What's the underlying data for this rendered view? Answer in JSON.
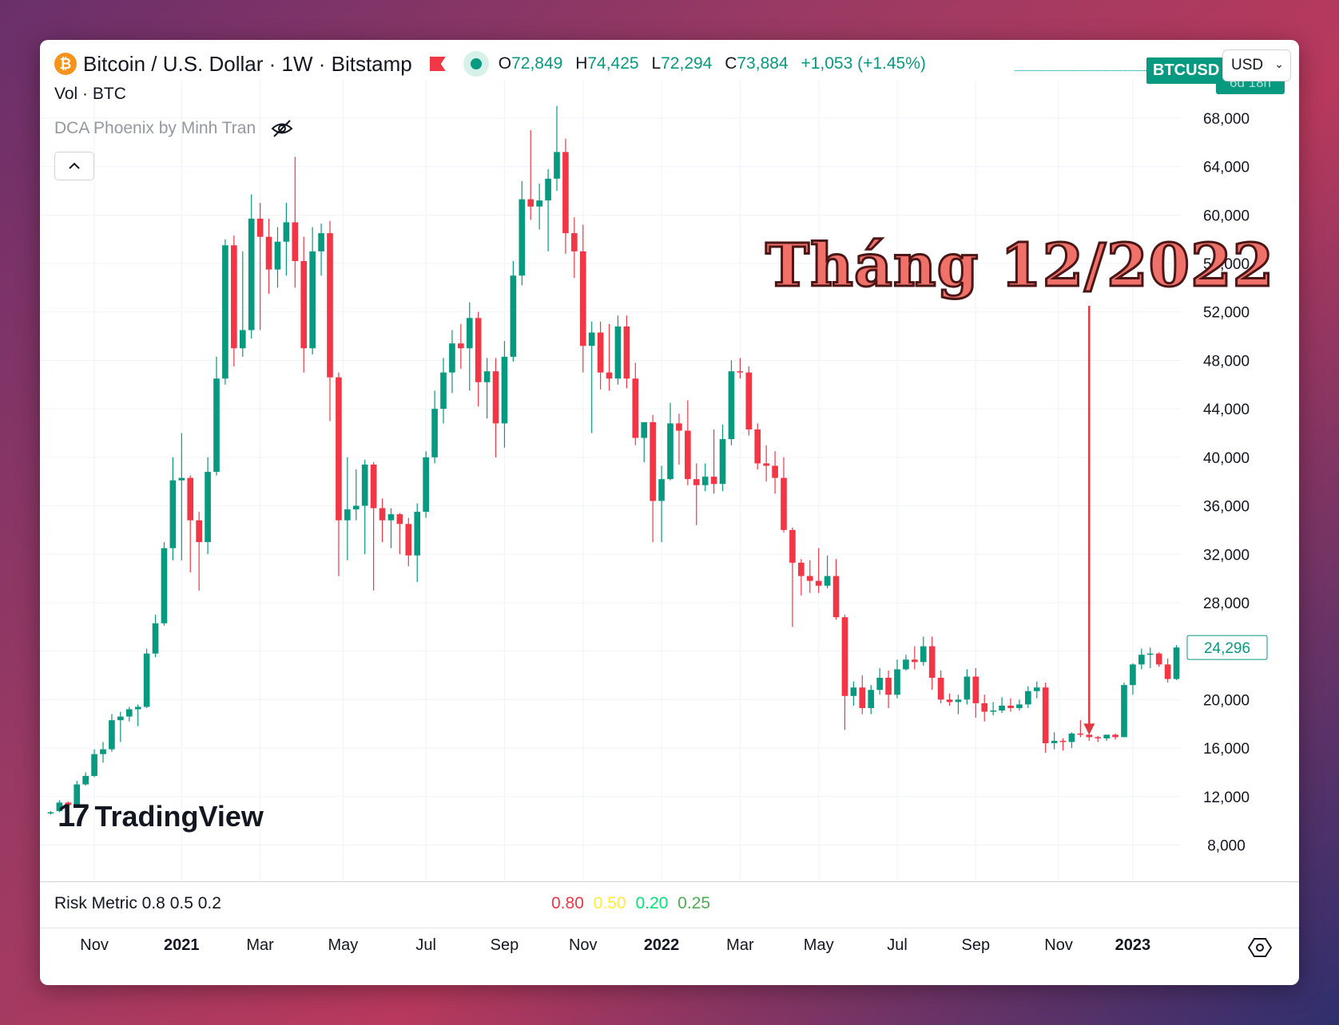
{
  "header": {
    "symbol_title": "Bitcoin / U.S. Dollar · 1W · Bitstamp",
    "logo_glyph": "₿",
    "ohlc": {
      "o_label": "O",
      "o": "72,849",
      "h_label": "H",
      "h": "74,425",
      "l_label": "L",
      "l": "72,294",
      "c_label": "C",
      "c": "73,884",
      "change": "+1,053 (+1.45%)"
    },
    "ticker_tag": "BTCUSD",
    "currency": "USD",
    "countdown": "6d 18h"
  },
  "legend": {
    "volume": "Vol · BTC",
    "indicator": "DCA Phoenix by Minh Tran"
  },
  "annotation": {
    "text": "Tháng 12/2022",
    "color": "#f0706a"
  },
  "branding": {
    "name": "TradingView"
  },
  "risk_metric": {
    "label": "Risk Metric 0.8 0.5 0.2",
    "values": [
      {
        "text": "0.80",
        "color": "#f23645"
      },
      {
        "text": "0.50",
        "color": "#ffeb3b"
      },
      {
        "text": "0.20",
        "color": "#00e676"
      },
      {
        "text": "0.25",
        "color": "#4caf50"
      }
    ]
  },
  "colors": {
    "up": "#089981",
    "down": "#f23645",
    "grid": "#f0f3fa",
    "axis_text": "#131722",
    "arrow": "#e0383e"
  },
  "chart_data": {
    "type": "candlestick",
    "interval": "1W",
    "y_ticks": [
      8000,
      12000,
      16000,
      20000,
      24000,
      28000,
      32000,
      36000,
      40000,
      44000,
      48000,
      52000,
      56000,
      60000,
      64000,
      68000
    ],
    "y_tick_labels": [
      "8,000",
      "12,000",
      "16,000",
      "20,000",
      "24,000",
      "28,000",
      "32,000",
      "36,000",
      "40,000",
      "44,000",
      "48,000",
      "52,000",
      "56,000",
      "60,000",
      "64,000",
      "68,000"
    ],
    "ylim": [
      5000,
      70500
    ],
    "last_price_label": "24,296",
    "last_price": 24296,
    "x_labels": [
      {
        "text": "Nov",
        "bold": false,
        "week": 5
      },
      {
        "text": "2021",
        "bold": true,
        "week": 15
      },
      {
        "text": "Mar",
        "bold": false,
        "week": 24
      },
      {
        "text": "May",
        "bold": false,
        "week": 33.5
      },
      {
        "text": "Jul",
        "bold": false,
        "week": 43
      },
      {
        "text": "Sep",
        "bold": false,
        "week": 52
      },
      {
        "text": "Nov",
        "bold": false,
        "week": 61
      },
      {
        "text": "2022",
        "bold": true,
        "week": 70
      },
      {
        "text": "Mar",
        "bold": false,
        "week": 79
      },
      {
        "text": "May",
        "bold": false,
        "week": 88
      },
      {
        "text": "Jul",
        "bold": false,
        "week": 97
      },
      {
        "text": "Sep",
        "bold": false,
        "week": 106
      },
      {
        "text": "Nov",
        "bold": false,
        "week": 115.5
      },
      {
        "text": "2023",
        "bold": true,
        "week": 124
      }
    ],
    "annotation_arrow_week": 119,
    "annotation_arrow_from": 52500,
    "annotation_arrow_to": 17100,
    "candles": [
      [
        10600,
        10700,
        10500,
        10800
      ],
      [
        10800,
        11500,
        10700,
        11700
      ],
      [
        11500,
        11300,
        11200,
        11600
      ],
      [
        11300,
        13000,
        11200,
        13300
      ],
      [
        13000,
        13700,
        12900,
        14000
      ],
      [
        13700,
        15500,
        13600,
        15900
      ],
      [
        15500,
        15900,
        14800,
        16500
      ],
      [
        15900,
        18300,
        15700,
        18800
      ],
      [
        18300,
        18600,
        16500,
        19000
      ],
      [
        18600,
        19200,
        18200,
        19400
      ],
      [
        19200,
        19400,
        17800,
        19600
      ],
      [
        19400,
        23800,
        19300,
        24200
      ],
      [
        23800,
        26300,
        23500,
        27000
      ],
      [
        26300,
        32500,
        26100,
        33000
      ],
      [
        32500,
        38100,
        31500,
        40000
      ],
      [
        38100,
        38300,
        31500,
        42000
      ],
      [
        38300,
        34800,
        30500,
        38500
      ],
      [
        34800,
        33000,
        29000,
        35500
      ],
      [
        33000,
        38800,
        32000,
        40000
      ],
      [
        38800,
        46500,
        38500,
        48300
      ],
      [
        46500,
        57500,
        46000,
        58000
      ],
      [
        57500,
        49000,
        47500,
        58300
      ],
      [
        49000,
        50500,
        48300,
        57000
      ],
      [
        50500,
        59700,
        49800,
        61700
      ],
      [
        59700,
        58200,
        50500,
        61000
      ],
      [
        58200,
        55500,
        53500,
        59700
      ],
      [
        55500,
        57800,
        54000,
        59000
      ],
      [
        57800,
        59400,
        55000,
        61000
      ],
      [
        59400,
        56200,
        54000,
        64800
      ],
      [
        56200,
        49000,
        47000,
        58200
      ],
      [
        49000,
        57000,
        48500,
        59000
      ],
      [
        57000,
        58500,
        55000,
        59300
      ],
      [
        58500,
        46600,
        43000,
        59500
      ],
      [
        46600,
        34800,
        30200,
        47000
      ],
      [
        34800,
        35700,
        31500,
        40000
      ],
      [
        35700,
        36000,
        34800,
        39000
      ],
      [
        36000,
        39400,
        32000,
        39800
      ],
      [
        39400,
        35800,
        29000,
        39600
      ],
      [
        35800,
        34800,
        33000,
        36600
      ],
      [
        34800,
        35300,
        32500,
        35800
      ],
      [
        35300,
        34500,
        32000,
        35400
      ],
      [
        34500,
        31900,
        31000,
        35000
      ],
      [
        31900,
        35500,
        29700,
        36200
      ],
      [
        35500,
        40000,
        35000,
        40500
      ],
      [
        40000,
        44000,
        39500,
        45500
      ],
      [
        44000,
        47000,
        42800,
        48200
      ],
      [
        47000,
        49400,
        45300,
        50500
      ],
      [
        49400,
        49000,
        47300,
        51000
      ],
      [
        49000,
        51500,
        45500,
        52800
      ],
      [
        51500,
        46200,
        44200,
        52000
      ],
      [
        46200,
        47100,
        43200,
        48200
      ],
      [
        47100,
        42800,
        40000,
        48200
      ],
      [
        42800,
        48300,
        40800,
        49600
      ],
      [
        48300,
        55000,
        47900,
        56200
      ],
      [
        55000,
        61300,
        54200,
        62800
      ],
      [
        61300,
        60700,
        59600,
        67000
      ],
      [
        60700,
        61200,
        58800,
        62600
      ],
      [
        61200,
        63000,
        57000,
        63800
      ],
      [
        63000,
        65200,
        62000,
        69000
      ],
      [
        65200,
        58500,
        56800,
        66300
      ],
      [
        58500,
        57000,
        54800,
        59800
      ],
      [
        57000,
        49200,
        47000,
        59200
      ],
      [
        49200,
        50300,
        42000,
        51200
      ],
      [
        50300,
        47000,
        45600,
        51200
      ],
      [
        47000,
        46500,
        45500,
        51000
      ],
      [
        46500,
        50800,
        46000,
        51700
      ],
      [
        50800,
        46500,
        45700,
        51700
      ],
      [
        46500,
        41600,
        41000,
        47800
      ],
      [
        41600,
        42900,
        39600,
        42900
      ],
      [
        42900,
        36400,
        33000,
        43500
      ],
      [
        36400,
        38200,
        33000,
        39300
      ],
      [
        38200,
        42800,
        38100,
        44500
      ],
      [
        42800,
        42200,
        39400,
        43600
      ],
      [
        42200,
        38200,
        37700,
        44700
      ],
      [
        38200,
        37700,
        34400,
        39500
      ],
      [
        37700,
        38400,
        37200,
        39500
      ],
      [
        38400,
        37800,
        37000,
        42300
      ],
      [
        37800,
        41500,
        37200,
        42700
      ],
      [
        41500,
        47100,
        41000,
        48000
      ],
      [
        47100,
        47000,
        46500,
        48200
      ],
      [
        47000,
        42300,
        41800,
        47500
      ],
      [
        42300,
        39500,
        39000,
        42800
      ],
      [
        39500,
        39300,
        38000,
        41000
      ],
      [
        39300,
        38300,
        37000,
        40500
      ],
      [
        38300,
        34000,
        33800,
        40000
      ],
      [
        34000,
        31300,
        26000,
        34200
      ],
      [
        31300,
        30200,
        28600,
        31600
      ],
      [
        30200,
        29800,
        28800,
        31500
      ],
      [
        29800,
        29400,
        28800,
        32500
      ],
      [
        29400,
        30200,
        29200,
        31900
      ],
      [
        30200,
        26800,
        26600,
        31600
      ],
      [
        26800,
        20300,
        17500,
        27000
      ],
      [
        20300,
        21000,
        19500,
        21500
      ],
      [
        21000,
        19300,
        18800,
        22000
      ],
      [
        19300,
        20800,
        18800,
        21200
      ],
      [
        20800,
        21800,
        20400,
        22600
      ],
      [
        21800,
        20400,
        19300,
        22400
      ],
      [
        20400,
        22500,
        20100,
        23300
      ],
      [
        22500,
        23300,
        22400,
        23700
      ],
      [
        23300,
        23100,
        22500,
        24400
      ],
      [
        23100,
        24400,
        22800,
        25200
      ],
      [
        24400,
        21800,
        20800,
        25200
      ],
      [
        21800,
        20000,
        19700,
        22400
      ],
      [
        20000,
        19800,
        19500,
        20500
      ],
      [
        19800,
        20000,
        18800,
        20400
      ],
      [
        20000,
        21900,
        19600,
        22500
      ],
      [
        21900,
        19700,
        18500,
        22600
      ],
      [
        19700,
        19000,
        18200,
        20400
      ],
      [
        19000,
        19100,
        18700,
        19800
      ],
      [
        19100,
        19500,
        18900,
        20200
      ],
      [
        19500,
        19300,
        19000,
        20100
      ],
      [
        19300,
        19600,
        19100,
        20000
      ],
      [
        19600,
        20700,
        19300,
        21100
      ],
      [
        20700,
        21000,
        20100,
        21500
      ],
      [
        21000,
        16400,
        15600,
        21400
      ],
      [
        16400,
        16600,
        15900,
        17300
      ],
      [
        16600,
        16500,
        15800,
        16800
      ],
      [
        16500,
        17200,
        16000,
        17300
      ],
      [
        17200,
        17100,
        16900,
        18300
      ],
      [
        17100,
        16900,
        16600,
        17400
      ],
      [
        16900,
        16800,
        16500,
        17000
      ],
      [
        16800,
        17100,
        16600,
        17100
      ],
      [
        17100,
        16900,
        16700,
        17200
      ],
      [
        16900,
        21200,
        16900,
        21400
      ],
      [
        21200,
        22900,
        20400,
        23000
      ],
      [
        22900,
        23700,
        22500,
        24200
      ],
      [
        23700,
        23800,
        22600,
        24300
      ],
      [
        23800,
        22900,
        22700,
        23900
      ],
      [
        22900,
        21700,
        21400,
        23400
      ],
      [
        21700,
        24300,
        21600,
        24500
      ]
    ]
  }
}
